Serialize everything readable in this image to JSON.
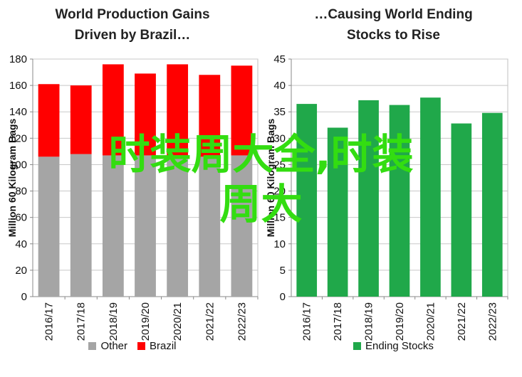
{
  "charts": [
    {
      "id": "left",
      "title_lines": [
        "World Production Gains",
        "Driven by Brazil…"
      ],
      "chart_data": {
        "type": "bar",
        "stacked": true,
        "title": "World Production Gains Driven by Brazil…",
        "ylabel": "Million 60 Kilogram Bags",
        "xlabel": "",
        "categories": [
          "2016/17",
          "2017/18",
          "2018/19",
          "2019/20",
          "2020/21",
          "2021/22",
          "2022/23"
        ],
        "series": [
          {
            "name": "Other",
            "color": "#a5a5a5",
            "values": [
              106,
              108,
              107,
              107,
              107,
              106,
              107
            ]
          },
          {
            "name": "Brazil",
            "color": "#ff0000",
            "values": [
              55,
              52,
              69,
              62,
              69,
              62,
              68
            ]
          }
        ],
        "ylim": [
          0,
          180
        ],
        "yticks": [
          "0",
          "20",
          "40",
          "60",
          "80",
          "100",
          "120",
          "140",
          "160",
          "180"
        ],
        "grid": true,
        "legend": "bottom"
      }
    },
    {
      "id": "right",
      "title_lines": [
        "…Causing World Ending",
        "Stocks to Rise"
      ],
      "chart_data": {
        "type": "bar",
        "title": "…Causing World Ending Stocks to Rise",
        "ylabel": "Million 60 Kilogram Bags",
        "xlabel": "",
        "categories": [
          "2016/17",
          "2017/18",
          "2018/19",
          "2019/20",
          "2020/21",
          "2021/22",
          "2022/23"
        ],
        "series": [
          {
            "name": "Ending Stocks",
            "color": "#20a84a",
            "values": [
              36.5,
              32.0,
              37.2,
              36.3,
              37.7,
              32.8,
              34.8
            ]
          }
        ],
        "ylim": [
          0,
          45
        ],
        "yticks": [
          "0",
          "5",
          "10",
          "15",
          "20",
          "25",
          "30",
          "35",
          "40",
          "45"
        ],
        "grid": true,
        "legend": "bottom"
      }
    }
  ],
  "watermark": {
    "lines": [
      "时装周大全,时装",
      "周大"
    ],
    "color": "#33dd11"
  }
}
